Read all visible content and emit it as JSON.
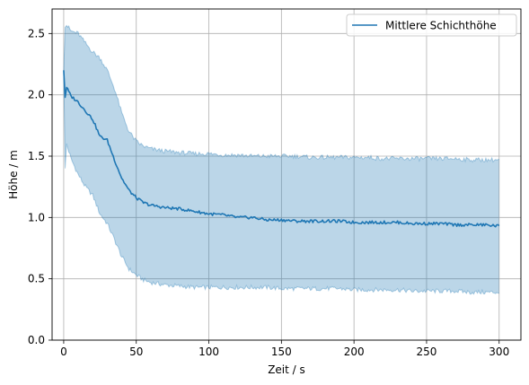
{
  "chart_data": {
    "type": "line",
    "title": "",
    "xlabel": "Zeit / s",
    "ylabel": "Höhe / m",
    "xlim": [
      -8,
      315
    ],
    "ylim": [
      0,
      2.7
    ],
    "xticks": [
      0,
      50,
      100,
      150,
      200,
      250,
      300
    ],
    "yticks": [
      0.0,
      0.5,
      1.0,
      1.5,
      2.0,
      2.5
    ],
    "xtick_labels": [
      "0",
      "50",
      "100",
      "150",
      "200",
      "250",
      "300"
    ],
    "ytick_labels": [
      "0.0",
      "0.5",
      "1.0",
      "1.5",
      "2.0",
      "2.5"
    ],
    "grid": true,
    "legend": {
      "position": "top-right",
      "entries": [
        "Mittlere Schichthöhe"
      ]
    },
    "colors": {
      "line": "#1f77b4",
      "band": "#1f77b4",
      "grid": "#b0b0b0"
    },
    "series": [
      {
        "name": "Mittlere Schichthöhe",
        "x": [
          0,
          1,
          2,
          5,
          10,
          15,
          20,
          25,
          30,
          35,
          40,
          45,
          50,
          55,
          60,
          70,
          80,
          90,
          100,
          110,
          120,
          130,
          140,
          150,
          160,
          170,
          180,
          190,
          200,
          210,
          220,
          230,
          240,
          250,
          260,
          270,
          280,
          290,
          300
        ],
        "y": [
          2.2,
          1.98,
          2.06,
          1.99,
          1.94,
          1.87,
          1.8,
          1.66,
          1.63,
          1.47,
          1.32,
          1.22,
          1.16,
          1.12,
          1.1,
          1.08,
          1.07,
          1.05,
          1.03,
          1.02,
          1.0,
          1.0,
          0.98,
          0.98,
          0.97,
          0.97,
          0.97,
          0.97,
          0.96,
          0.96,
          0.96,
          0.96,
          0.95,
          0.95,
          0.95,
          0.94,
          0.94,
          0.94,
          0.93
        ],
        "lower": [
          2.2,
          1.4,
          1.6,
          1.48,
          1.35,
          1.25,
          1.18,
          1.03,
          0.95,
          0.82,
          0.68,
          0.58,
          0.53,
          0.49,
          0.47,
          0.45,
          0.44,
          0.43,
          0.43,
          0.43,
          0.43,
          0.43,
          0.43,
          0.42,
          0.42,
          0.42,
          0.42,
          0.42,
          0.41,
          0.41,
          0.41,
          0.41,
          0.4,
          0.4,
          0.4,
          0.4,
          0.39,
          0.39,
          0.39
        ],
        "upper": [
          2.2,
          2.55,
          2.57,
          2.52,
          2.5,
          2.42,
          2.35,
          2.3,
          2.2,
          2.05,
          1.85,
          1.7,
          1.62,
          1.58,
          1.56,
          1.54,
          1.53,
          1.52,
          1.52,
          1.51,
          1.51,
          1.5,
          1.5,
          1.5,
          1.5,
          1.49,
          1.49,
          1.49,
          1.49,
          1.49,
          1.48,
          1.48,
          1.48,
          1.48,
          1.48,
          1.48,
          1.47,
          1.47,
          1.47
        ]
      }
    ]
  }
}
